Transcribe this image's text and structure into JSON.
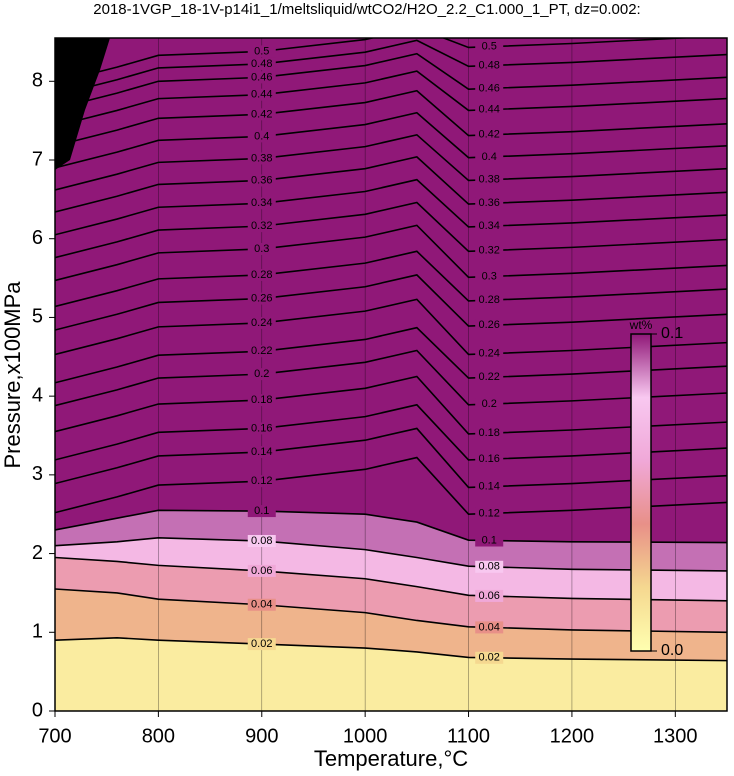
{
  "chart_data": {
    "type": "contour",
    "title": "2018-1VGP_18-1V-p14i1_1/meltsliquid/wtCO2/H2O_2.2_C1.000_1_PT, dz=0.002:",
    "x_label": "Temperature,°C",
    "y_label": "Pressure,x100MPa",
    "xlim": [
      700,
      1350
    ],
    "ylim": [
      0,
      8.55
    ],
    "xticks": [
      700,
      800,
      900,
      1000,
      1100,
      1200,
      1300
    ],
    "yticks": [
      0,
      1,
      2,
      3,
      4,
      5,
      6,
      7,
      8
    ],
    "line_color": "#000000",
    "x": [
      700,
      760,
      800,
      900,
      1000,
      1050,
      1100,
      1200,
      1350
    ],
    "contours": [
      {
        "level": 0.02,
        "values": [
          0.9,
          0.93,
          0.9,
          0.85,
          0.8,
          0.75,
          0.68,
          0.66,
          0.64
        ]
      },
      {
        "level": 0.04,
        "values": [
          1.55,
          1.5,
          1.42,
          1.35,
          1.25,
          1.15,
          1.07,
          1.03,
          1.0
        ]
      },
      {
        "level": 0.06,
        "values": [
          1.95,
          1.9,
          1.85,
          1.78,
          1.68,
          1.58,
          1.47,
          1.43,
          1.4
        ]
      },
      {
        "level": 0.08,
        "values": [
          2.1,
          2.15,
          2.2,
          2.16,
          2.05,
          1.95,
          1.84,
          1.8,
          1.78
        ]
      },
      {
        "level": 0.1,
        "values": [
          2.3,
          2.45,
          2.55,
          2.54,
          2.5,
          2.4,
          2.17,
          2.15,
          2.14
        ]
      },
      {
        "level": 0.12,
        "values": [
          2.52,
          2.72,
          2.87,
          2.92,
          3.07,
          3.22,
          2.5,
          2.55,
          2.65
        ]
      },
      {
        "level": 0.14,
        "values": [
          2.89,
          3.09,
          3.24,
          3.29,
          3.44,
          3.59,
          2.84,
          2.89,
          2.99
        ]
      },
      {
        "level": 0.16,
        "values": [
          3.19,
          3.39,
          3.54,
          3.59,
          3.74,
          3.89,
          3.19,
          3.24,
          3.34
        ]
      },
      {
        "level": 0.18,
        "values": [
          3.55,
          3.75,
          3.9,
          3.95,
          4.1,
          4.25,
          3.52,
          3.57,
          3.67
        ]
      },
      {
        "level": 0.2,
        "values": [
          3.88,
          4.08,
          4.23,
          4.28,
          4.43,
          4.58,
          3.89,
          3.94,
          4.04
        ]
      },
      {
        "level": 0.22,
        "values": [
          4.17,
          4.37,
          4.52,
          4.57,
          4.72,
          4.87,
          4.23,
          4.28,
          4.38
        ]
      },
      {
        "level": 0.24,
        "values": [
          4.53,
          4.73,
          4.88,
          4.93,
          5.08,
          5.23,
          4.53,
          4.58,
          4.68
        ]
      },
      {
        "level": 0.26,
        "values": [
          4.84,
          5.04,
          5.19,
          5.24,
          5.39,
          5.54,
          4.89,
          4.94,
          5.04
        ]
      },
      {
        "level": 0.28,
        "values": [
          5.14,
          5.34,
          5.49,
          5.54,
          5.69,
          5.84,
          5.21,
          5.26,
          5.36
        ]
      },
      {
        "level": 0.3,
        "values": [
          5.47,
          5.67,
          5.82,
          5.87,
          6.02,
          6.17,
          5.51,
          5.56,
          5.66
        ]
      },
      {
        "level": 0.32,
        "values": [
          5.76,
          5.96,
          6.11,
          6.16,
          6.31,
          6.46,
          5.84,
          5.89,
          5.99
        ]
      },
      {
        "level": 0.34,
        "values": [
          6.05,
          6.25,
          6.4,
          6.45,
          6.6,
          6.75,
          6.15,
          6.2,
          6.3
        ]
      },
      {
        "level": 0.36,
        "values": [
          6.34,
          6.54,
          6.69,
          6.74,
          6.89,
          7.04,
          6.44,
          6.49,
          6.59
        ]
      },
      {
        "level": 0.38,
        "values": [
          6.62,
          6.82,
          6.97,
          7.02,
          7.17,
          7.32,
          6.74,
          6.79,
          6.89
        ]
      },
      {
        "level": 0.4,
        "values": [
          6.9,
          7.1,
          7.25,
          7.3,
          7.45,
          7.6,
          7.03,
          7.08,
          7.18
        ]
      },
      {
        "level": 0.42,
        "values": [
          7.18,
          7.38,
          7.53,
          7.58,
          7.73,
          7.88,
          7.31,
          7.36,
          7.46
        ]
      },
      {
        "level": 0.44,
        "values": [
          7.43,
          7.63,
          7.78,
          7.83,
          7.98,
          8.13,
          7.63,
          7.68,
          7.78
        ]
      },
      {
        "level": 0.46,
        "values": [
          7.65,
          7.85,
          8.0,
          8.05,
          8.2,
          8.35,
          7.9,
          7.95,
          8.05
        ]
      },
      {
        "level": 0.48,
        "values": [
          7.82,
          8.02,
          8.17,
          8.22,
          8.37,
          8.52,
          8.19,
          8.24,
          8.34
        ]
      },
      {
        "level": 0.5,
        "values": [
          7.98,
          8.18,
          8.33,
          8.38,
          8.53,
          8.68,
          8.43,
          8.48,
          8.58
        ]
      }
    ],
    "label_x": [
      900,
      1120
    ],
    "colorbar": {
      "label": "wt%",
      "lim": [
        0,
        0.1
      ],
      "ticks": [
        {
          "value": 0,
          "label": "0.0"
        },
        0.1
      ],
      "colors": [
        "#ffffb0",
        "#f5d890",
        "#e89088",
        "#f0a8d8",
        "#f8c8f0",
        "#901878"
      ]
    }
  }
}
